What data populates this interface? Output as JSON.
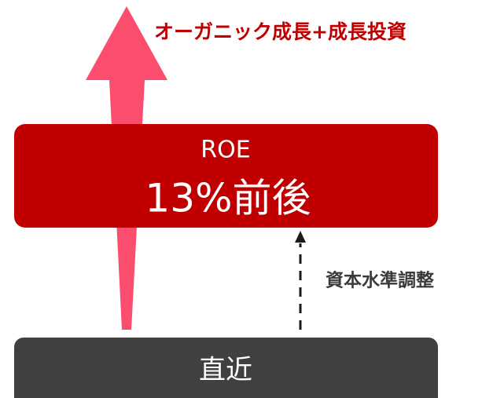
{
  "arrow_label": "オーガニック成長+成長投資",
  "target": {
    "label": "ROE",
    "value": "13%前後"
  },
  "adjustment_label": "資本水準調整",
  "current": {
    "label": "直近"
  }
}
